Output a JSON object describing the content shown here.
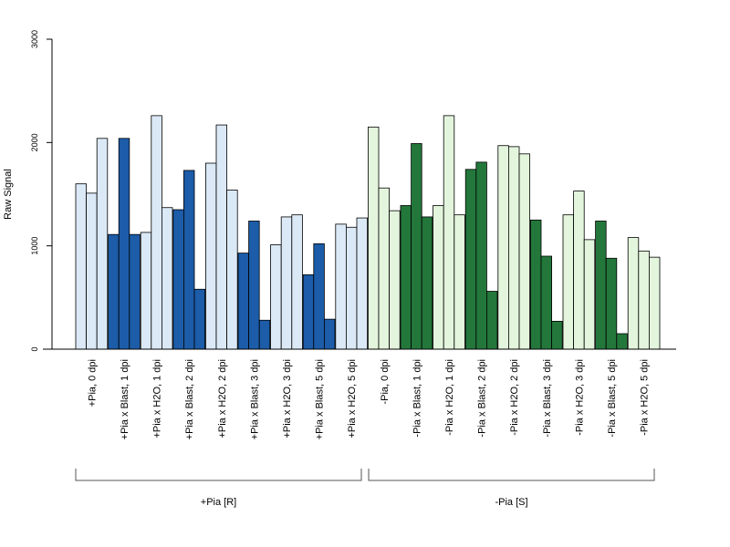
{
  "chart_data": {
    "type": "bar",
    "title": "",
    "xlabel": "",
    "ylabel": "Raw Signal",
    "ylim": [
      0,
      3000
    ],
    "yticks": [
      0,
      1000,
      2000,
      3000
    ],
    "grid": false,
    "legend": "none",
    "categories": [
      "+Pia, 0 dpi",
      "+Pia x Blast, 1 dpi",
      "+Pia x H2O, 1 dpi",
      "+Pia x Blast, 2 dpi",
      "+Pia x H2O, 2 dpi",
      "+Pia x Blast, 3 dpi",
      "+Pia x H2O, 3 dpi",
      "+Pia x Blast, 5 dpi",
      "+Pia x H2O, 5 dpi",
      "-Pia, 0 dpi",
      "-Pia x Blast, 1 dpi",
      "-Pia x H2O, 1 dpi",
      "-Pia x Blast, 2 dpi",
      "-Pia x H2O, 2 dpi",
      "-Pia x Blast, 3 dpi",
      "-Pia x H2O, 3 dpi",
      "-Pia x Blast, 5 dpi",
      "-Pia x H2O, 5 dpi"
    ],
    "replicates": [
      [
        1600,
        1510,
        2040
      ],
      [
        1110,
        2040,
        1110
      ],
      [
        1130,
        2260,
        1370
      ],
      [
        1350,
        1730,
        580
      ],
      [
        1800,
        2170,
        1540
      ],
      [
        930,
        1240,
        280
      ],
      [
        1010,
        1280,
        1300
      ],
      [
        720,
        1020,
        290
      ],
      [
        1210,
        1180,
        1270
      ],
      [
        2150,
        1560,
        1340
      ],
      [
        1390,
        1990,
        1280
      ],
      [
        1390,
        2260,
        1300
      ],
      [
        1740,
        1810,
        560
      ],
      [
        1970,
        1960,
        1890
      ],
      [
        1250,
        900,
        270
      ],
      [
        1300,
        1530,
        1060
      ],
      [
        1240,
        880,
        150
      ],
      [
        1080,
        950,
        890
      ]
    ],
    "bar_colors": [
      "#dbe9f6",
      "#1c5ca8",
      "#dbe9f6",
      "#1c5ca8",
      "#dbe9f6",
      "#1c5ca8",
      "#dbe9f6",
      "#1c5ca8",
      "#dbe9f6",
      "#e3f5dc",
      "#23773b",
      "#e3f5dc",
      "#23773b",
      "#e3f5dc",
      "#23773b",
      "#e3f5dc",
      "#23773b",
      "#e3f5dc"
    ],
    "groups": [
      {
        "label": "+Pia [R]",
        "from": 0,
        "to": 8
      },
      {
        "label": "-Pia [S]",
        "from": 9,
        "to": 17
      }
    ]
  }
}
